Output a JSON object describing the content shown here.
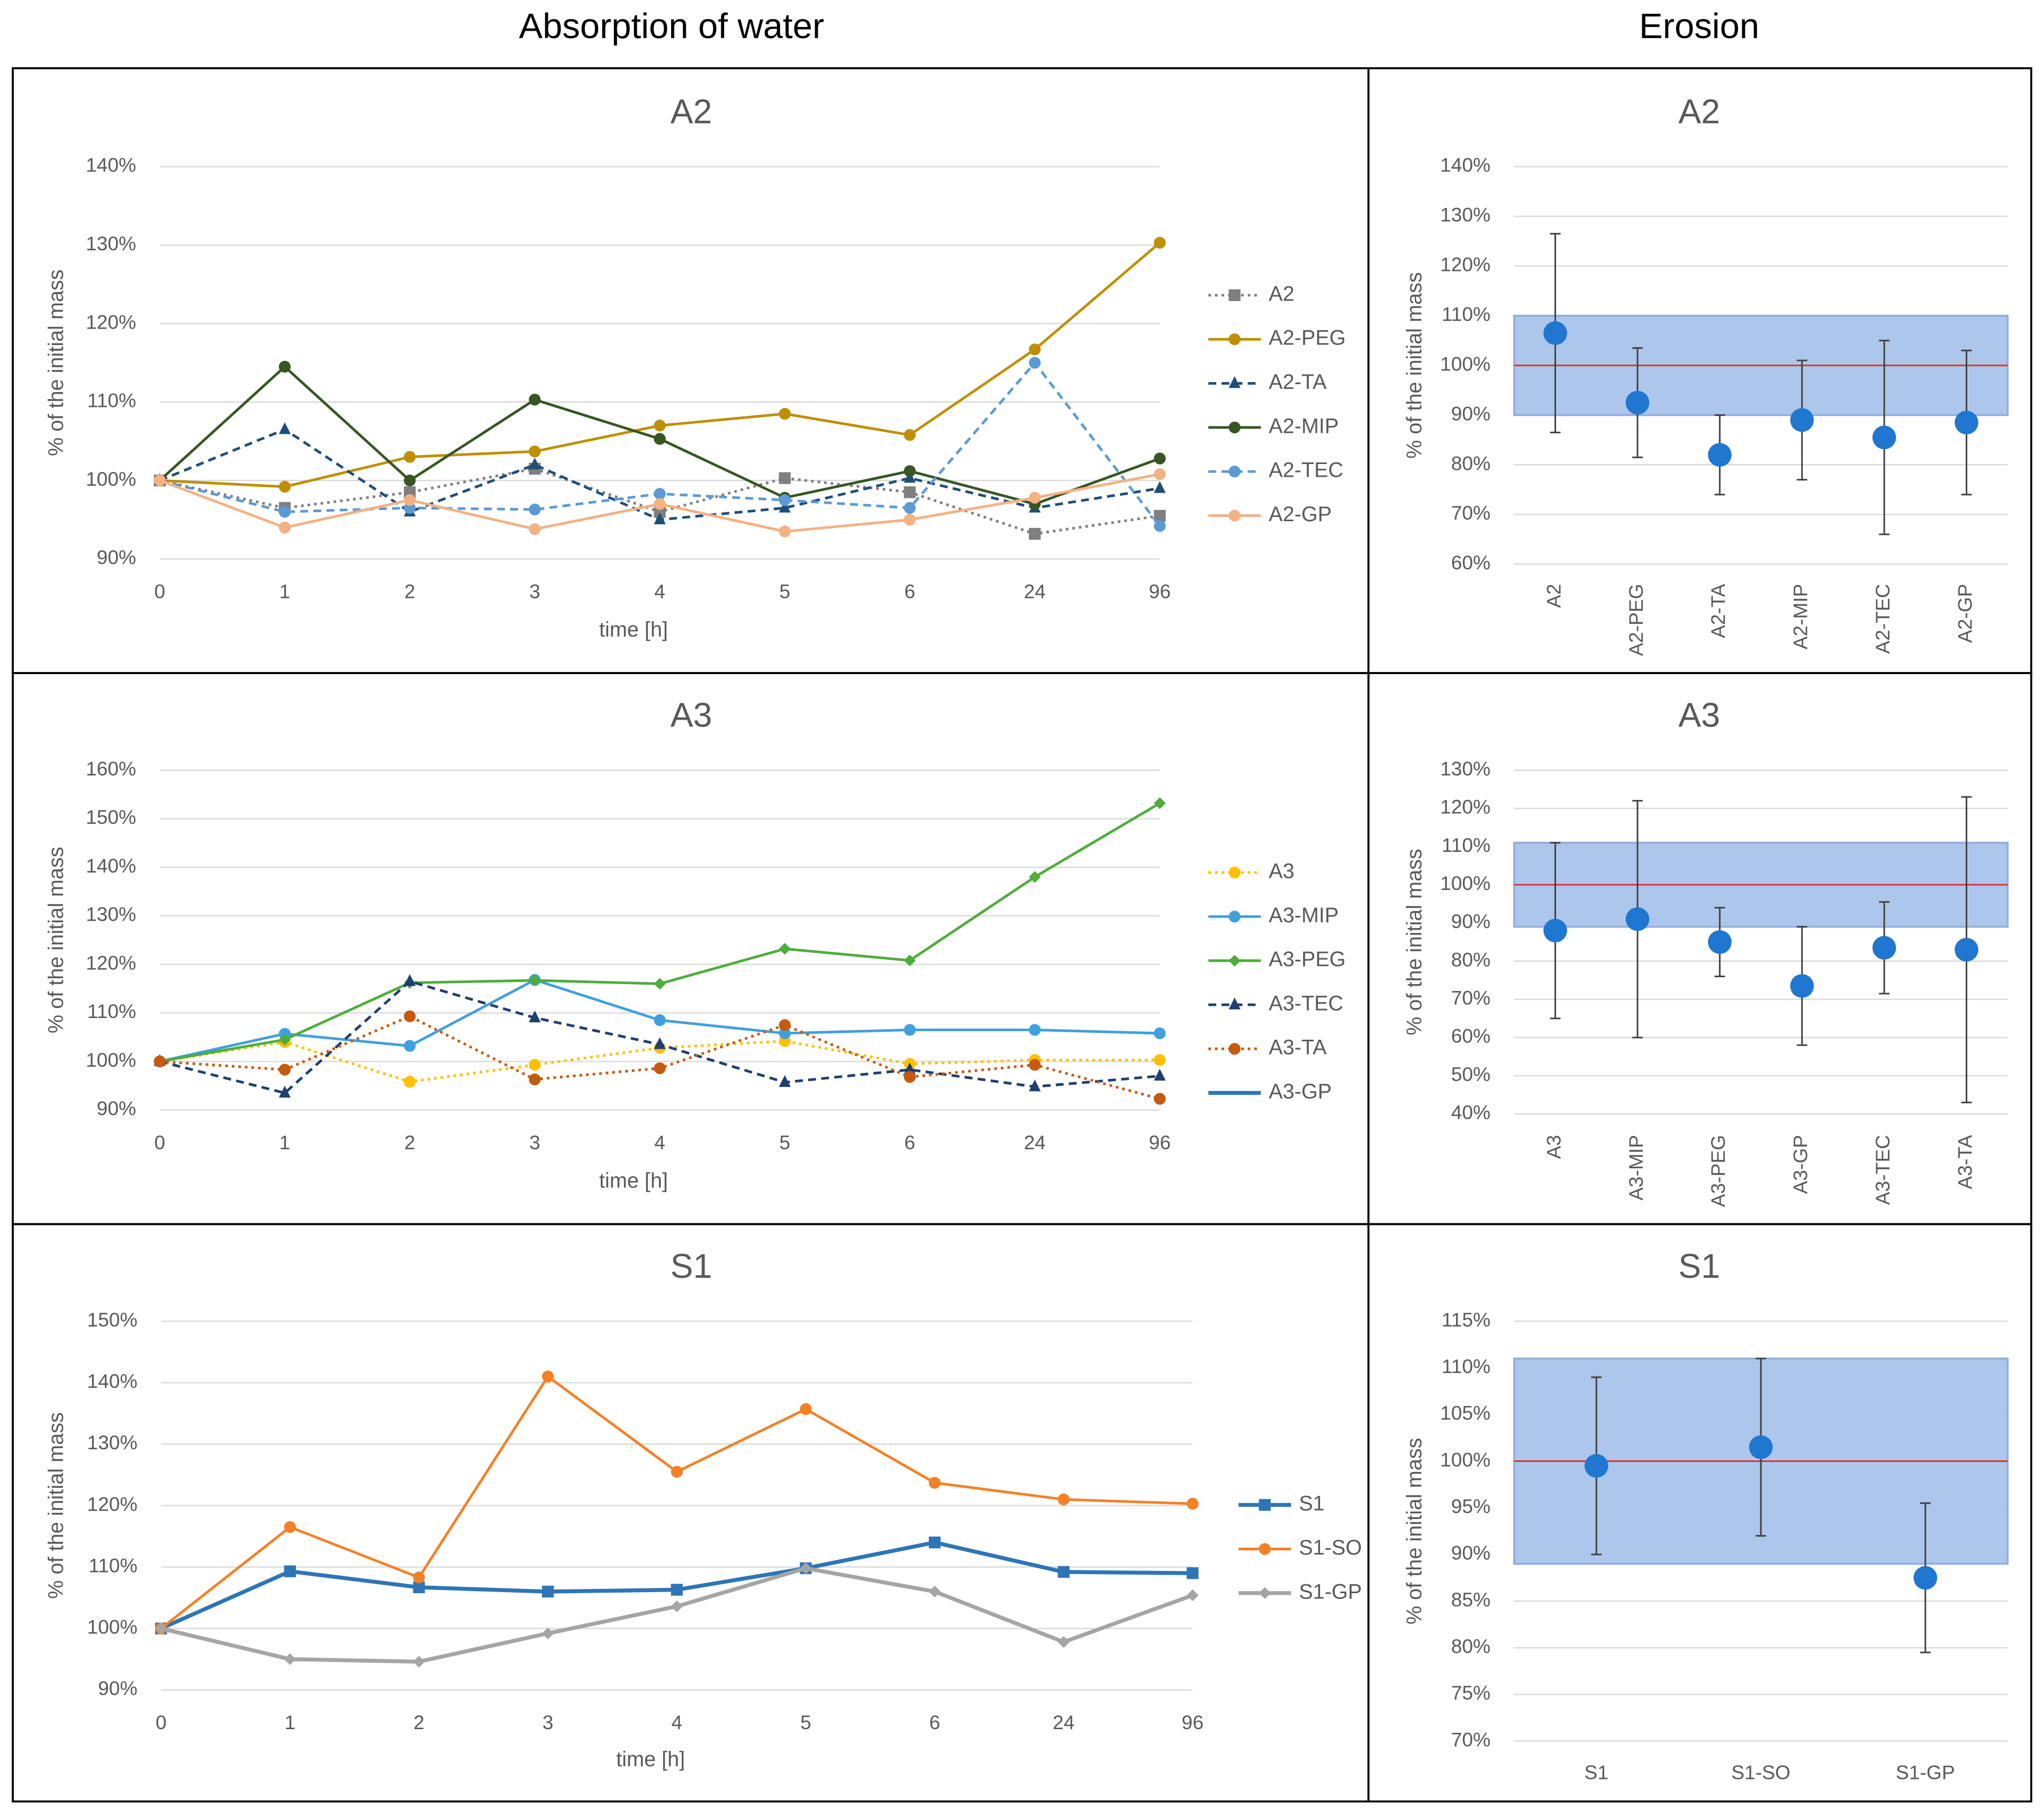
{
  "column_titles": [
    "Absorption of water",
    "Erosion"
  ],
  "chart_data": [
    {
      "type": "line",
      "title": "A2",
      "xlabel": "time [h]",
      "ylabel": "% of the initial mass",
      "categories": [
        "0",
        "1",
        "2",
        "3",
        "4",
        "5",
        "6",
        "24",
        "96"
      ],
      "ylim": [
        90,
        140
      ],
      "yticks": [
        {
          "value": 90,
          "label": "90%"
        },
        {
          "value": 100,
          "label": "100%"
        },
        {
          "value": 110,
          "label": "110%"
        },
        {
          "value": 120,
          "label": "120%"
        },
        {
          "value": 130,
          "label": "130%"
        },
        {
          "value": 140,
          "label": "140%"
        }
      ],
      "grid": true,
      "series": [
        {
          "name": "A2",
          "color": "#7f7f7f",
          "dash": "dotted",
          "marker": "square",
          "values": [
            100,
            96.5,
            98.5,
            101.5,
            96,
            100.3,
            98.5,
            93.2,
            95.5
          ]
        },
        {
          "name": "A2-PEG",
          "color": "#bf8f00",
          "dash": "solid",
          "marker": "circle",
          "values": [
            100,
            99.2,
            103,
            103.7,
            107,
            108.5,
            105.8,
            116.7,
            130.3
          ]
        },
        {
          "name": "A2-TA",
          "color": "#1f4e79",
          "dash": "dashed",
          "marker": "triangle",
          "values": [
            100,
            106.5,
            96,
            102,
            95,
            96.5,
            100.3,
            96.5,
            99
          ]
        },
        {
          "name": "A2-MIP",
          "color": "#375623",
          "dash": "solid",
          "marker": "circle",
          "values": [
            100,
            114.5,
            100,
            110.3,
            105.3,
            97.8,
            101.2,
            97,
            102.8
          ]
        },
        {
          "name": "A2-TEC",
          "color": "#5b9bd5",
          "dash": "dashed",
          "marker": "circle",
          "values": [
            100,
            96,
            96.5,
            96.3,
            98.3,
            97.5,
            96.5,
            115,
            94.2
          ]
        },
        {
          "name": "A2-GP",
          "color": "#f4b183",
          "dash": "solid",
          "marker": "circle",
          "values": [
            100,
            94,
            97.5,
            93.8,
            97,
            93.5,
            95,
            97.8,
            100.8
          ]
        }
      ]
    },
    {
      "type": "errorbar",
      "title": "A2",
      "ylabel": "% of the initial mass",
      "categories": [
        "A2",
        "A2-PEG",
        "A2-TA",
        "A2-MIP",
        "A2-TEC",
        "A2-GP"
      ],
      "values": [
        106.5,
        92.5,
        82,
        89,
        85.5,
        88.5
      ],
      "errors": [
        20,
        11,
        8,
        12,
        19.5,
        14.5
      ],
      "color": "#1f77d0",
      "band": [
        90,
        110
      ],
      "band_color": "#a9c4eb",
      "reference_line": 100,
      "reference_color": "#e0302c",
      "ylim": [
        60,
        140
      ],
      "yticks": [
        {
          "value": 60,
          "label": "60%"
        },
        {
          "value": 70,
          "label": "70%"
        },
        {
          "value": 80,
          "label": "80%"
        },
        {
          "value": 90,
          "label": "90%"
        },
        {
          "value": 100,
          "label": "100%"
        },
        {
          "value": 110,
          "label": "110%"
        },
        {
          "value": 120,
          "label": "120%"
        },
        {
          "value": 130,
          "label": "130%"
        },
        {
          "value": 140,
          "label": "140%"
        }
      ],
      "grid": true,
      "rotate_labels": true
    },
    {
      "type": "line",
      "title": "A3",
      "xlabel": "time  [h]",
      "ylabel": "% of the initial mass",
      "categories": [
        "0",
        "1",
        "2",
        "3",
        "4",
        "5",
        "6",
        "24",
        "96"
      ],
      "ylim": [
        90,
        160
      ],
      "yticks": [
        {
          "value": 90,
          "label": "90%"
        },
        {
          "value": 100,
          "label": "100%"
        },
        {
          "value": 110,
          "label": "110%"
        },
        {
          "value": 120,
          "label": "120%"
        },
        {
          "value": 130,
          "label": "130%"
        },
        {
          "value": 140,
          "label": "140%"
        },
        {
          "value": 150,
          "label": "150%"
        },
        {
          "value": 160,
          "label": "160%"
        }
      ],
      "grid": true,
      "series": [
        {
          "name": "A3",
          "color": "#ffc000",
          "dash": "dotted",
          "marker": "circle",
          "values": [
            100,
            104,
            95.8,
            99.3,
            102.8,
            104.2,
            99.5,
            100.3,
            100.3
          ]
        },
        {
          "name": "A3-MIP",
          "color": "#41a0dc",
          "dash": "solid",
          "marker": "circle",
          "values": [
            100,
            105.7,
            103.2,
            116.8,
            108.5,
            105.8,
            106.5,
            106.5,
            105.8
          ]
        },
        {
          "name": "A3-PEG",
          "color": "#4ead3b",
          "dash": "solid",
          "marker": "diamond",
          "values": [
            100,
            104.5,
            116.2,
            116.7,
            116,
            123.2,
            120.8,
            138,
            153.2
          ]
        },
        {
          "name": "A3-TEC",
          "color": "#1f3f6e",
          "dash": "dashed",
          "marker": "triangle",
          "values": [
            100,
            93.5,
            116.5,
            109,
            103.5,
            95.7,
            98.3,
            94.8,
            97
          ]
        },
        {
          "name": "A3-TA",
          "color": "#c55a11",
          "dash": "dotted",
          "marker": "circle",
          "values": [
            100,
            98.3,
            109.3,
            96.3,
            98.6,
            107.5,
            96.8,
            99.3,
            92.3
          ]
        },
        {
          "name": "A3-GP",
          "color": "#2e75b6",
          "dash": "solid",
          "marker": "none",
          "width": 3,
          "values": [
            null,
            null,
            null,
            null,
            null,
            null,
            null,
            null,
            null
          ]
        }
      ]
    },
    {
      "type": "errorbar",
      "title": "A3",
      "ylabel": "% of the initial mass",
      "categories": [
        "A3",
        "A3-MIP",
        "A3-PEG",
        "A3-GP",
        "A3-TEC",
        "A3-TA"
      ],
      "values": [
        88,
        91,
        85,
        73.5,
        83.5,
        83
      ],
      "errors": [
        23,
        31,
        9,
        15.5,
        12,
        40
      ],
      "color": "#1f77d0",
      "band": [
        89,
        111
      ],
      "band_color": "#a9c4eb",
      "reference_line": 100,
      "reference_color": "#e0302c",
      "ylim": [
        40,
        130
      ],
      "yticks": [
        {
          "value": 40,
          "label": "40%"
        },
        {
          "value": 50,
          "label": "50%"
        },
        {
          "value": 60,
          "label": "60%"
        },
        {
          "value": 70,
          "label": "70%"
        },
        {
          "value": 80,
          "label": "80%"
        },
        {
          "value": 90,
          "label": "90%"
        },
        {
          "value": 100,
          "label": "100%"
        },
        {
          "value": 110,
          "label": "110%"
        },
        {
          "value": 120,
          "label": "120%"
        },
        {
          "value": 130,
          "label": "130%"
        }
      ],
      "grid": true,
      "rotate_labels": true
    },
    {
      "type": "line",
      "title": "S1",
      "xlabel": "time [h]",
      "ylabel": "% of the initial mass",
      "categories": [
        "0",
        "1",
        "2",
        "3",
        "4",
        "5",
        "6",
        "24",
        "96"
      ],
      "ylim": [
        90,
        150
      ],
      "yticks": [
        {
          "value": 90,
          "label": "90%"
        },
        {
          "value": 100,
          "label": "100%"
        },
        {
          "value": 110,
          "label": "110%"
        },
        {
          "value": 120,
          "label": "120%"
        },
        {
          "value": 130,
          "label": "130%"
        },
        {
          "value": 140,
          "label": "140%"
        },
        {
          "value": 150,
          "label": "150%"
        }
      ],
      "grid": true,
      "series": [
        {
          "name": "S1",
          "color": "#2e75b6",
          "dash": "solid",
          "marker": "square",
          "width": 3,
          "values": [
            100,
            109.3,
            106.7,
            106,
            106.3,
            109.8,
            114,
            109.2,
            109
          ]
        },
        {
          "name": "S1-SO",
          "color": "#f58025",
          "dash": "solid",
          "marker": "circle",
          "values": [
            100,
            116.5,
            108.3,
            141,
            125.5,
            135.7,
            123.7,
            121,
            120.3
          ]
        },
        {
          "name": "S1-GP",
          "color": "#a5a5a5",
          "dash": "solid",
          "marker": "diamond",
          "width": 3,
          "values": [
            100,
            95,
            94.6,
            99.2,
            103.6,
            109.8,
            106,
            97.8,
            105.4
          ]
        }
      ]
    },
    {
      "type": "errorbar",
      "title": "S1",
      "ylabel": "% of the initial mass",
      "categories": [
        "S1",
        "S1-SO",
        "S1-GP"
      ],
      "values": [
        99.5,
        101.5,
        87.5
      ],
      "errors": [
        9.5,
        9.5,
        8
      ],
      "color": "#1f77d0",
      "band": [
        89,
        111
      ],
      "band_color": "#a9c4eb",
      "reference_line": 100,
      "reference_color": "#e0302c",
      "ylim": [
        70,
        115
      ],
      "yticks": [
        {
          "value": 70,
          "label": "70%"
        },
        {
          "value": 75,
          "label": "75%"
        },
        {
          "value": 80,
          "label": "80%"
        },
        {
          "value": 85,
          "label": "85%"
        },
        {
          "value": 90,
          "label": "90%"
        },
        {
          "value": 95,
          "label": "95%"
        },
        {
          "value": 100,
          "label": "100%"
        },
        {
          "value": 105,
          "label": "105%"
        },
        {
          "value": 110,
          "label": "110%"
        },
        {
          "value": 115,
          "label": "115%"
        }
      ],
      "grid": true,
      "rotate_labels": false
    }
  ]
}
